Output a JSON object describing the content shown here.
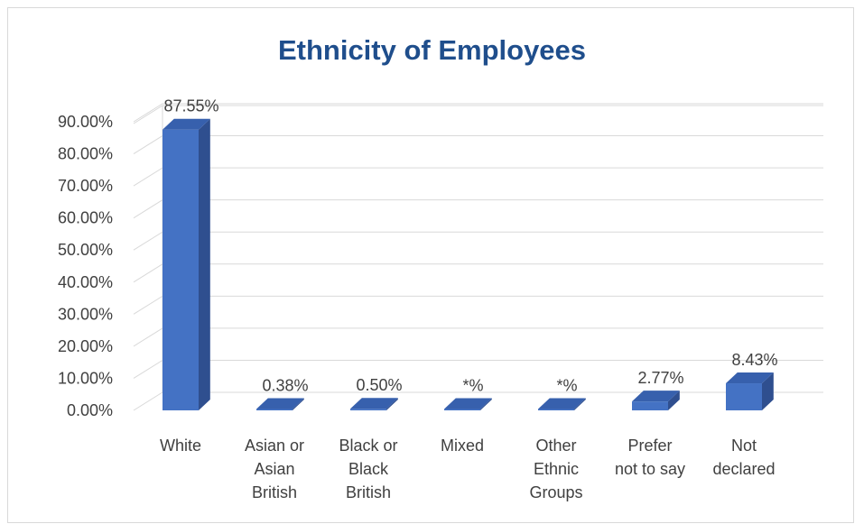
{
  "chart_data": {
    "type": "bar",
    "title": "Ethnicity of Employees",
    "xlabel": "",
    "ylabel": "",
    "ylim": [
      0,
      90
    ],
    "y_ticks": [
      "0.00%",
      "10.00%",
      "20.00%",
      "30.00%",
      "40.00%",
      "50.00%",
      "60.00%",
      "70.00%",
      "80.00%",
      "90.00%"
    ],
    "grid": true,
    "style": "3d-column",
    "bar_color": "#4472c4",
    "categories": [
      [
        "White"
      ],
      [
        "Asian or",
        "Asian",
        "British"
      ],
      [
        "Black or",
        "Black",
        "British"
      ],
      [
        "Mixed"
      ],
      [
        "Other",
        "Ethnic",
        "Groups"
      ],
      [
        "Prefer",
        "not to say"
      ],
      [
        "Not",
        "declared"
      ]
    ],
    "values": [
      87.55,
      0.38,
      0.5,
      0,
      0,
      2.77,
      8.43
    ],
    "data_labels": [
      "87.55%",
      "0.38%",
      "0.50%",
      "*%",
      "*%",
      "2.77%",
      "8.43%"
    ]
  }
}
